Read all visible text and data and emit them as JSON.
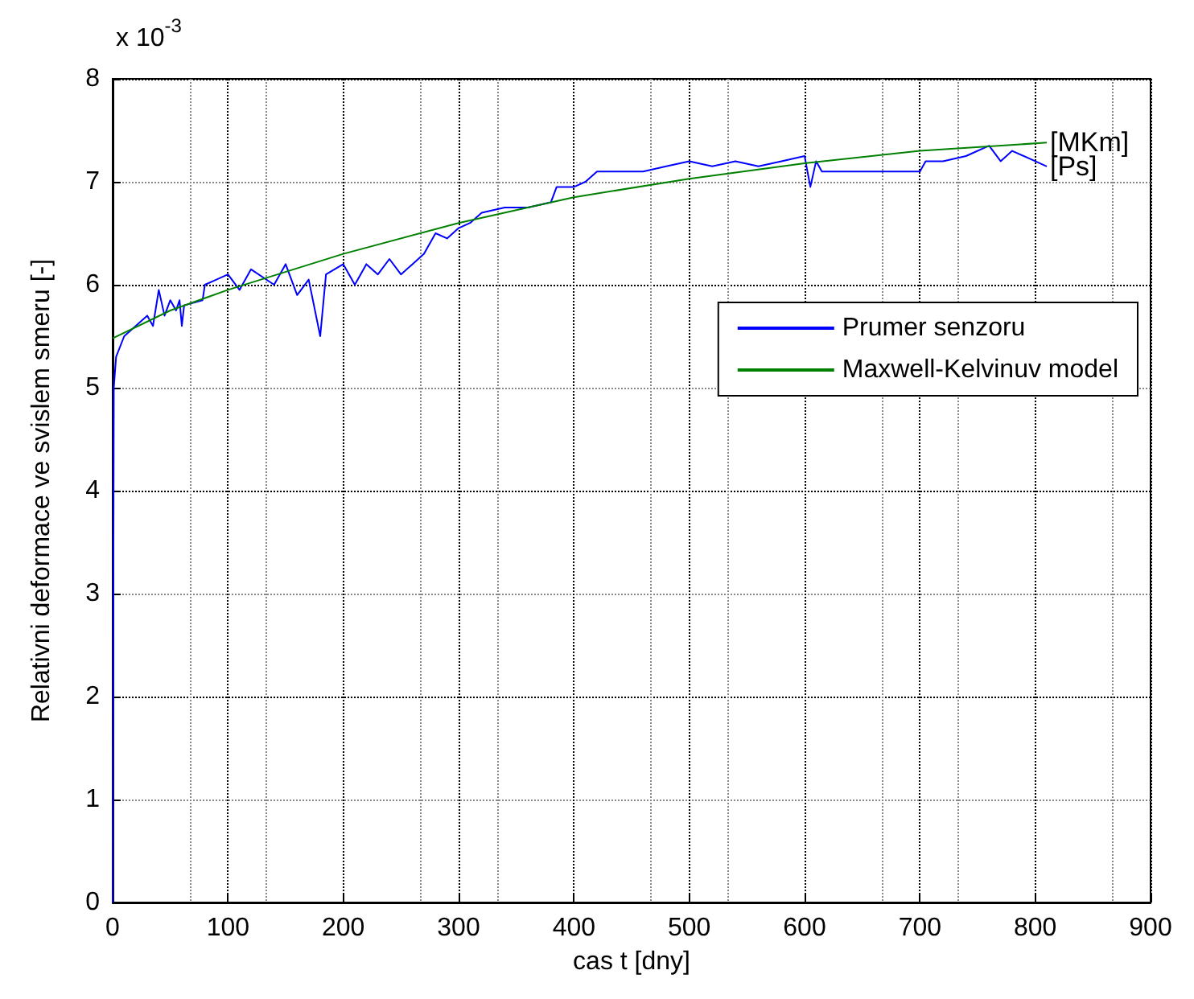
{
  "chart_data": {
    "type": "line",
    "xlabel": "cas t [dny]",
    "ylabel": "Relativni deformace ve svislem smeru [-]",
    "annotations": [
      "x 10$^{-3}$",
      {
        "text": "[MKm]",
        "x": 810,
        "y": 7.38
      },
      {
        "text": "[Ps]",
        "x": 810,
        "y": 7.15
      }
    ],
    "xlim": [
      0,
      900
    ],
    "xticks": [
      0,
      100,
      200,
      300,
      400,
      500,
      600,
      700,
      800,
      900
    ],
    "ylim": [
      0,
      8
    ],
    "yticks": [
      0,
      1,
      2,
      3,
      4,
      5,
      6,
      7,
      8
    ],
    "grid": true,
    "legend": "right",
    "line_style": "solid",
    "marker": "none",
    "series": [
      {
        "name": "Prumer senzoru",
        "color": "#0000ff",
        "x": [
          0,
          1,
          3,
          10,
          20,
          30,
          35,
          40,
          45,
          50,
          55,
          58,
          60,
          62,
          78,
          80,
          90,
          100,
          110,
          120,
          140,
          150,
          160,
          170,
          180,
          185,
          200,
          210,
          220,
          230,
          240,
          250,
          260,
          270,
          280,
          290,
          300,
          310,
          320,
          340,
          360,
          380,
          385,
          400,
          410,
          420,
          440,
          460,
          480,
          500,
          520,
          540,
          560,
          580,
          600,
          605,
          610,
          615,
          620,
          700,
          705,
          720,
          740,
          760,
          770,
          780,
          800,
          810
        ],
        "values": [
          0,
          5.0,
          5.3,
          5.5,
          5.6,
          5.7,
          5.6,
          5.95,
          5.7,
          5.85,
          5.75,
          5.85,
          5.6,
          5.8,
          5.85,
          6.0,
          6.05,
          6.1,
          5.95,
          6.15,
          6.0,
          6.2,
          5.9,
          6.05,
          5.5,
          6.1,
          6.2,
          6.0,
          6.2,
          6.1,
          6.25,
          6.1,
          6.2,
          6.3,
          6.5,
          6.45,
          6.55,
          6.6,
          6.7,
          6.75,
          6.75,
          6.8,
          6.95,
          6.95,
          7.0,
          7.1,
          7.1,
          7.1,
          7.15,
          7.2,
          7.15,
          7.2,
          7.15,
          7.2,
          7.25,
          6.95,
          7.2,
          7.1,
          7.1,
          7.1,
          7.2,
          7.2,
          7.25,
          7.35,
          7.2,
          7.3,
          7.2,
          7.15
        ]
      },
      {
        "name": "Maxwell-Kelvinuv model",
        "color": "#008000",
        "x": [
          0,
          50,
          100,
          200,
          300,
          400,
          500,
          600,
          700,
          810
        ],
        "values": [
          5.48,
          5.75,
          5.95,
          6.3,
          6.6,
          6.85,
          7.03,
          7.18,
          7.3,
          7.38
        ]
      }
    ]
  }
}
